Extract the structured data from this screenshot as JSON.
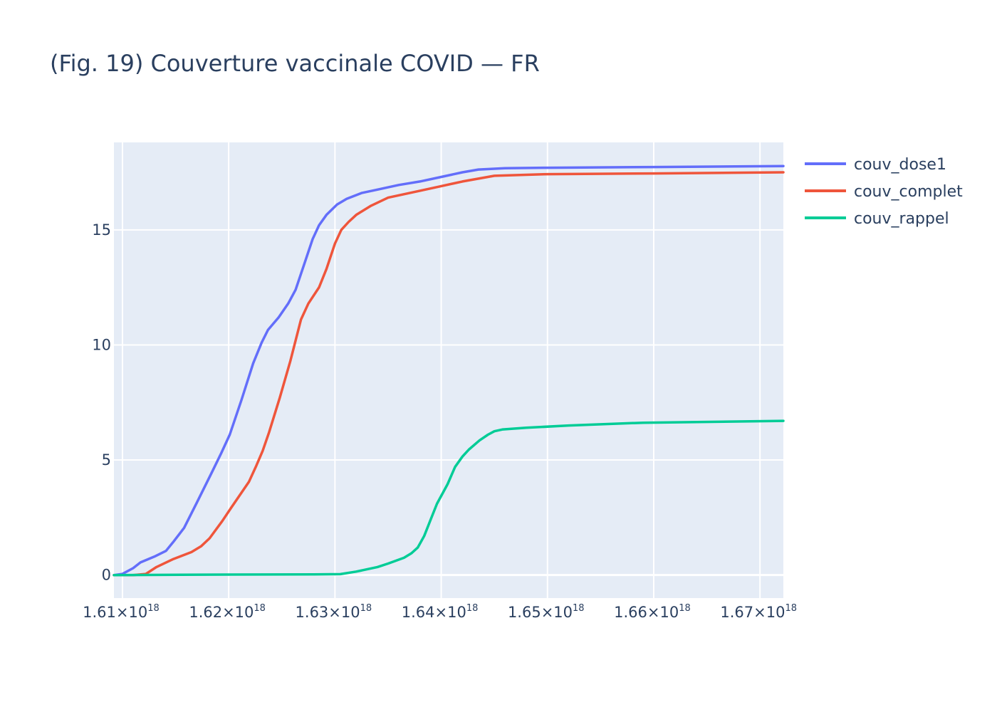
{
  "chart_data": {
    "type": "line",
    "title": "(Fig. 19) Couverture vaccinale COVID — FR",
    "xlabel": "",
    "ylabel": "",
    "xlim": [
      1.6092e+18,
      1.6722e+18
    ],
    "ylim": [
      -1,
      18.8
    ],
    "grid": true,
    "legend_position": "right",
    "x_ticks": [
      {
        "value": 1.61e+18,
        "mantissa": "1.61×10",
        "exponent": "18"
      },
      {
        "value": 1.62e+18,
        "mantissa": "1.62×10",
        "exponent": "18"
      },
      {
        "value": 1.63e+18,
        "mantissa": "1.63×10",
        "exponent": "18"
      },
      {
        "value": 1.64e+18,
        "mantissa": "1.64×10",
        "exponent": "18"
      },
      {
        "value": 1.65e+18,
        "mantissa": "1.65×10",
        "exponent": "18"
      },
      {
        "value": 1.66e+18,
        "mantissa": "1.66×10",
        "exponent": "18"
      },
      {
        "value": 1.67e+18,
        "mantissa": "1.67×10",
        "exponent": "18"
      }
    ],
    "y_ticks": [
      {
        "value": 0,
        "label": "0"
      },
      {
        "value": 5,
        "label": "5"
      },
      {
        "value": 10,
        "label": "10"
      },
      {
        "value": 15,
        "label": "15"
      }
    ],
    "series": [
      {
        "name": "couv_dose1",
        "color": "#636efa",
        "x": [
          1.6092e+18,
          1.61e+18,
          1.611e+18,
          1.6117e+18,
          1.613e+18,
          1.6141e+18,
          1.6148e+18,
          1.6158e+18,
          1.617e+18,
          1.6184e+18,
          1.6193e+18,
          1.6201e+18,
          1.6212e+18,
          1.6223e+18,
          1.6231e+18,
          1.6237e+18,
          1.6247e+18,
          1.6256e+18,
          1.6263e+18,
          1.6271e+18,
          1.6279e+18,
          1.6285e+18,
          1.6292e+18,
          1.6302e+18,
          1.6311e+18,
          1.6325e+18,
          1.634e+18,
          1.636e+18,
          1.638e+18,
          1.64e+18,
          1.642e+18,
          1.6435e+18,
          1.646e+18,
          1.65e+18,
          1.66e+18,
          1.6722e+18
        ],
        "y": [
          0,
          0.05,
          0.3,
          0.55,
          0.8,
          1.05,
          1.45,
          2.05,
          3.15,
          4.45,
          5.3,
          6.1,
          7.6,
          9.2,
          10.1,
          10.65,
          11.2,
          11.8,
          12.4,
          13.5,
          14.6,
          15.2,
          15.65,
          16.1,
          16.35,
          16.6,
          16.75,
          16.95,
          17.1,
          17.3,
          17.5,
          17.62,
          17.68,
          17.7,
          17.73,
          17.77
        ]
      },
      {
        "name": "couv_complet",
        "color": "#ef553b",
        "x": [
          1.6092e+18,
          1.611e+18,
          1.6122e+18,
          1.6132e+18,
          1.6148e+18,
          1.6165e+18,
          1.6174e+18,
          1.6182e+18,
          1.6194e+18,
          1.6202e+18,
          1.6219e+18,
          1.6226e+18,
          1.6232e+18,
          1.6238e+18,
          1.6248e+18,
          1.6258e+18,
          1.6268e+18,
          1.6275e+18,
          1.6285e+18,
          1.6292e+18,
          1.63e+18,
          1.6306e+18,
          1.6313e+18,
          1.632e+18,
          1.6334e+18,
          1.635e+18,
          1.638e+18,
          1.64e+18,
          1.642e+18,
          1.645e+18,
          1.65e+18,
          1.66e+18,
          1.6722e+18
        ],
        "y": [
          0,
          0,
          0.05,
          0.35,
          0.7,
          1.0,
          1.25,
          1.6,
          2.35,
          2.9,
          4.05,
          4.75,
          5.4,
          6.2,
          7.7,
          9.3,
          11.1,
          11.8,
          12.5,
          13.3,
          14.4,
          15.0,
          15.35,
          15.65,
          16.05,
          16.4,
          16.7,
          16.9,
          17.1,
          17.35,
          17.42,
          17.45,
          17.5
        ]
      },
      {
        "name": "couv_rappel",
        "color": "#00cc96",
        "x": [
          1.6092e+18,
          1.62e+18,
          1.628e+18,
          1.6305e+18,
          1.632e+18,
          1.634e+18,
          1.635e+18,
          1.6365e+18,
          1.6372e+18,
          1.6378e+18,
          1.6384e+18,
          1.639e+18,
          1.6396e+18,
          1.6406e+18,
          1.6413e+18,
          1.642e+18,
          1.6426e+18,
          1.6436e+18,
          1.6444e+18,
          1.645e+18,
          1.6458e+18,
          1.648e+18,
          1.652e+18,
          1.659e+18,
          1.6722e+18
        ],
        "y": [
          0,
          0.02,
          0.03,
          0.04,
          0.15,
          0.35,
          0.5,
          0.75,
          0.95,
          1.2,
          1.7,
          2.4,
          3.1,
          3.95,
          4.7,
          5.15,
          5.45,
          5.85,
          6.1,
          6.25,
          6.33,
          6.4,
          6.5,
          6.62,
          6.7
        ]
      }
    ]
  }
}
